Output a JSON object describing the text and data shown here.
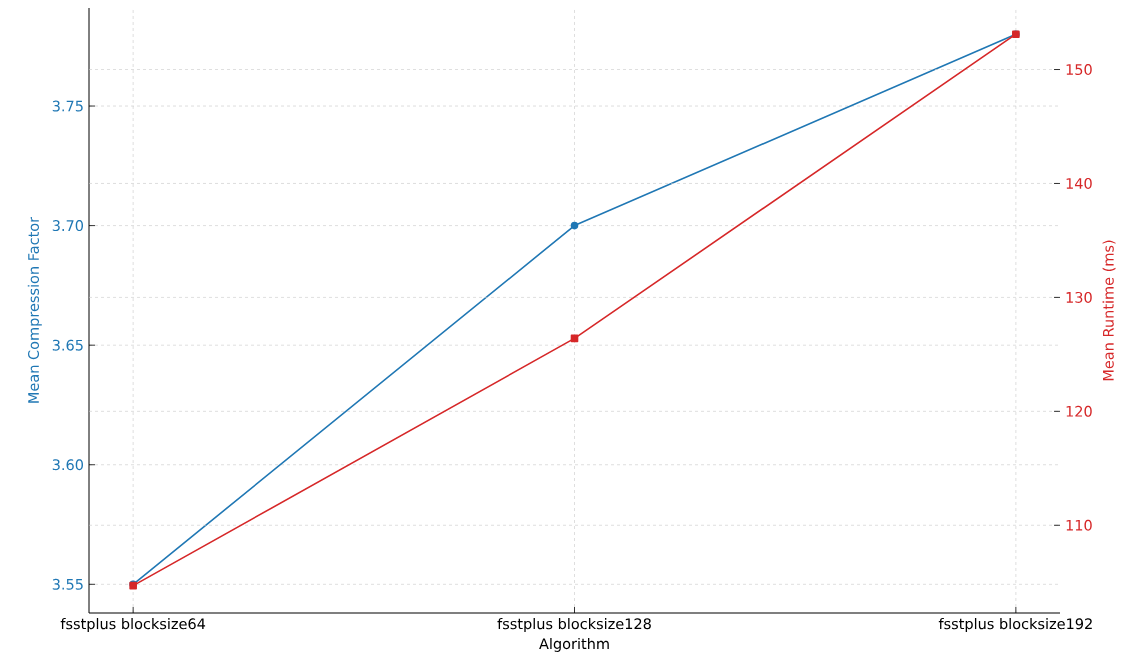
{
  "chart_data": {
    "type": "line",
    "xlabel": "Algorithm",
    "ylabel": "Mean Compression Factor",
    "y2label": "Mean Runtime (ms)",
    "categories": [
      "fsstplus blocksize64",
      "fsstplus blocksize128",
      "fsstplus blocksize192"
    ],
    "series": [
      {
        "color": "#1f77b4",
        "marker": "circle",
        "values": [
          3.55,
          3.7,
          3.78
        ]
      },
      {
        "color": "#d62728",
        "marker": "square",
        "axis": "y2",
        "values": [
          104.7,
          126.4,
          153.1
        ]
      }
    ],
    "ylim": [
      3.538,
      3.791
    ],
    "yticks": [
      {
        "value": 3.55,
        "label": "3.55"
      },
      {
        "value": 3.6,
        "label": "3.60"
      },
      {
        "value": 3.65,
        "label": "3.65"
      },
      {
        "value": 3.7,
        "label": "3.70"
      },
      {
        "value": 3.75,
        "label": "3.75"
      }
    ],
    "y2lim": [
      102.3,
      155.4
    ],
    "y2ticks": [
      110,
      120,
      130,
      140,
      150
    ],
    "grid": true,
    "line_style": "solid"
  }
}
